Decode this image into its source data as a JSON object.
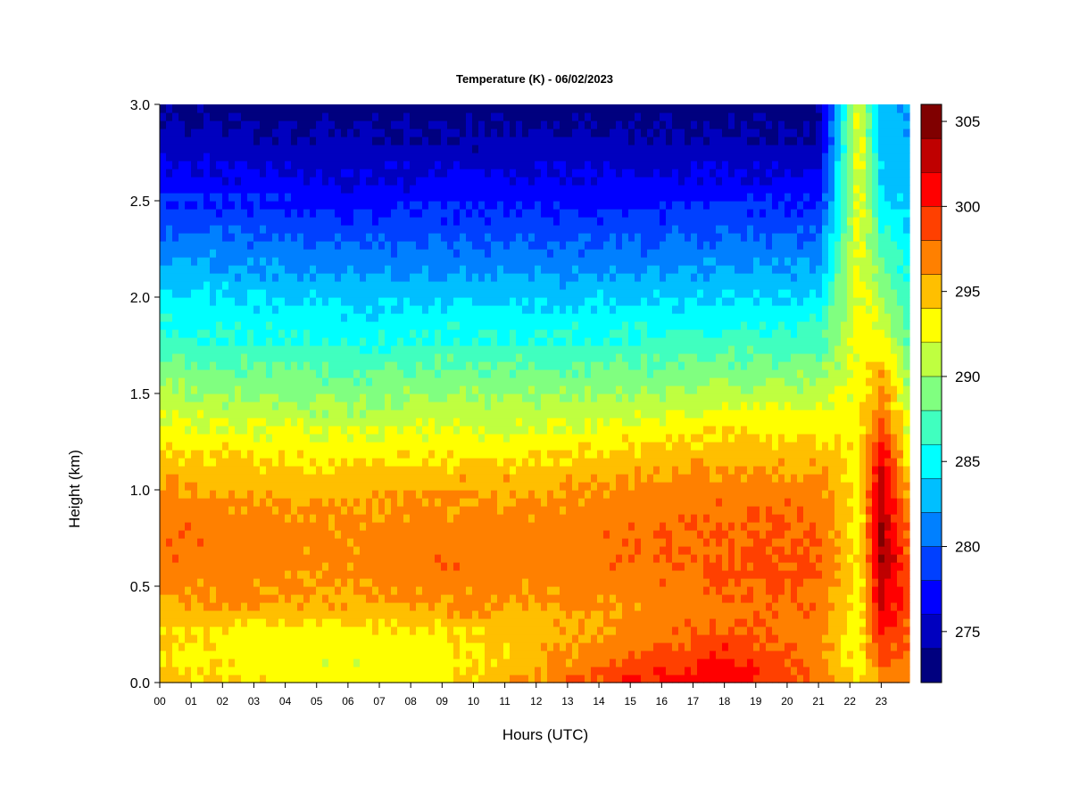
{
  "chart_data": {
    "type": "heatmap",
    "title": "Temperature (K) - 06/02/2023",
    "xlabel": "Hours (UTC)",
    "ylabel": "Height (km)",
    "x_ticks": [
      "00",
      "01",
      "02",
      "03",
      "04",
      "05",
      "06",
      "07",
      "08",
      "09",
      "10",
      "11",
      "12",
      "13",
      "14",
      "15",
      "16",
      "17",
      "18",
      "19",
      "20",
      "21",
      "22",
      "23"
    ],
    "xlim": [
      0,
      23.9
    ],
    "y_ticks": [
      "0.0",
      "0.5",
      "1.0",
      "1.5",
      "2.0",
      "2.5",
      "3.0"
    ],
    "ylim": [
      0,
      3.0
    ],
    "colorbar": {
      "ticks": [
        "275",
        "280",
        "285",
        "290",
        "295",
        "300",
        "305"
      ],
      "range": [
        272,
        306
      ],
      "bands": [
        {
          "from": 272,
          "to": 274,
          "color": "#00007f"
        },
        {
          "from": 274,
          "to": 276,
          "color": "#0000bf"
        },
        {
          "from": 276,
          "to": 278,
          "color": "#0000ff"
        },
        {
          "from": 278,
          "to": 280,
          "color": "#0040ff"
        },
        {
          "from": 280,
          "to": 282,
          "color": "#0080ff"
        },
        {
          "from": 282,
          "to": 284,
          "color": "#00bfff"
        },
        {
          "from": 284,
          "to": 286,
          "color": "#00ffff"
        },
        {
          "from": 286,
          "to": 288,
          "color": "#40ffbf"
        },
        {
          "from": 288,
          "to": 290,
          "color": "#80ff80"
        },
        {
          "from": 290,
          "to": 292,
          "color": "#bfff40"
        },
        {
          "from": 292,
          "to": 294,
          "color": "#ffff00"
        },
        {
          "from": 294,
          "to": 296,
          "color": "#ffbf00"
        },
        {
          "from": 296,
          "to": 298,
          "color": "#ff8000"
        },
        {
          "from": 298,
          "to": 300,
          "color": "#ff4000"
        },
        {
          "from": 300,
          "to": 302,
          "color": "#ff0000"
        },
        {
          "from": 302,
          "to": 304,
          "color": "#bf0000"
        },
        {
          "from": 304,
          "to": 306,
          "color": "#800000"
        }
      ]
    },
    "profile_height_km": [
      0.0,
      0.1,
      0.25,
      0.4,
      0.6,
      0.8,
      1.0,
      1.2,
      1.4,
      1.6,
      1.8,
      2.0,
      2.2,
      2.4,
      2.6,
      2.8,
      3.0
    ],
    "profiles": [
      {
        "hour": 0,
        "temperature_k": [
          295.5,
          294.5,
          294.0,
          296.0,
          297.5,
          297.5,
          296.5,
          294.0,
          291.5,
          289.0,
          286.5,
          284.5,
          282.0,
          279.5,
          277.0,
          275.0,
          273.5
        ]
      },
      {
        "hour": 3,
        "temperature_k": [
          293.5,
          293.0,
          293.0,
          296.0,
          297.0,
          297.0,
          296.0,
          293.5,
          291.0,
          288.5,
          286.0,
          284.0,
          281.5,
          279.0,
          276.5,
          274.5,
          273.0
        ]
      },
      {
        "hour": 6,
        "temperature_k": [
          293.0,
          292.5,
          293.0,
          295.5,
          296.5,
          296.5,
          295.5,
          293.0,
          290.5,
          288.0,
          285.5,
          283.5,
          281.0,
          278.5,
          276.0,
          274.5,
          273.0
        ]
      },
      {
        "hour": 9,
        "temperature_k": [
          293.5,
          293.0,
          293.5,
          296.5,
          297.5,
          297.0,
          296.0,
          293.5,
          291.0,
          288.5,
          286.0,
          283.5,
          281.0,
          278.5,
          276.5,
          274.5,
          273.0
        ]
      },
      {
        "hour": 12,
        "temperature_k": [
          296.5,
          295.5,
          295.0,
          296.0,
          297.0,
          297.0,
          296.0,
          293.5,
          291.0,
          288.5,
          286.0,
          283.5,
          281.0,
          278.5,
          276.5,
          274.5,
          273.0
        ]
      },
      {
        "hour": 15,
        "temperature_k": [
          300.0,
          298.5,
          296.5,
          296.5,
          297.5,
          297.5,
          296.5,
          294.5,
          291.5,
          288.5,
          286.0,
          283.5,
          281.0,
          278.5,
          276.5,
          274.5,
          273.0
        ]
      },
      {
        "hour": 18,
        "temperature_k": [
          302.0,
          300.5,
          298.5,
          297.5,
          298.0,
          298.0,
          297.0,
          295.0,
          292.5,
          289.0,
          286.5,
          284.0,
          281.5,
          279.0,
          276.5,
          274.5,
          273.0
        ]
      },
      {
        "hour": 21,
        "temperature_k": [
          298.0,
          297.0,
          296.5,
          297.5,
          298.5,
          298.0,
          297.0,
          295.0,
          292.5,
          289.5,
          286.5,
          284.0,
          281.5,
          279.0,
          276.5,
          274.5,
          273.0
        ]
      },
      {
        "hour": 22.3,
        "temperature_k": [
          293.0,
          293.0,
          293.0,
          293.0,
          293.0,
          293.0,
          293.0,
          293.0,
          293.0,
          293.0,
          293.0,
          293.0,
          293.0,
          293.0,
          293.0,
          293.0,
          293.0
        ]
      },
      {
        "hour": 23,
        "temperature_k": [
          296.0,
          298.5,
          300.5,
          302.0,
          304.0,
          304.5,
          303.5,
          301.0,
          298.0,
          295.5,
          292.5,
          290.0,
          287.5,
          285.5,
          284.0,
          283.0,
          282.5
        ]
      },
      {
        "hour": 23.9,
        "temperature_k": [
          296.0,
          297.0,
          298.0,
          298.5,
          298.0,
          296.5,
          295.0,
          293.0,
          291.0,
          289.5,
          288.0,
          286.5,
          285.0,
          284.0,
          283.0,
          282.5,
          282.0
        ]
      }
    ]
  }
}
